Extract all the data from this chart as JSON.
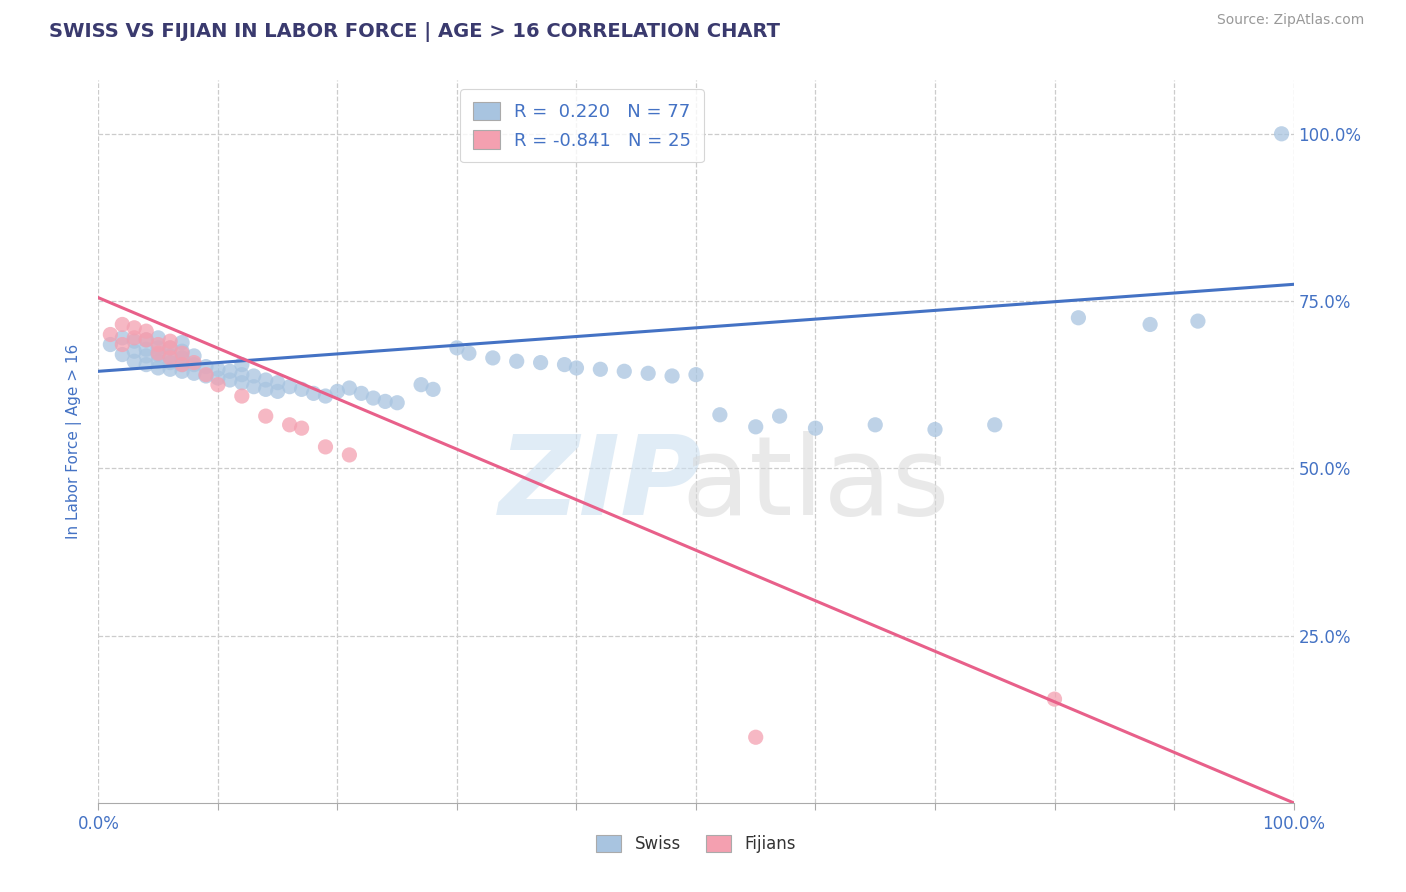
{
  "title": "SWISS VS FIJIAN IN LABOR FORCE | AGE > 16 CORRELATION CHART",
  "source_text": "Source: ZipAtlas.com",
  "ylabel": "In Labor Force | Age > 16",
  "xlim": [
    0.0,
    1.0
  ],
  "ylim": [
    0.0,
    1.08
  ],
  "yticks": [
    0.25,
    0.5,
    0.75,
    1.0
  ],
  "ytick_labels": [
    "25.0%",
    "50.0%",
    "75.0%",
    "100.0%"
  ],
  "xtick_positions": [
    0.0,
    0.1,
    0.2,
    0.3,
    0.4,
    0.5,
    0.6,
    0.7,
    0.8,
    0.9,
    1.0
  ],
  "xlim_labels_shown": [
    "0.0%",
    "100.0%"
  ],
  "background_color": "#ffffff",
  "grid_color": "#cccccc",
  "title_color": "#3a3a6e",
  "axis_color": "#4472c4",
  "swiss_color": "#a8c4e0",
  "fijian_color": "#f4a0b0",
  "swiss_line_color": "#4472c4",
  "fijian_line_color": "#e8608a",
  "legend_r1": "R =  0.220",
  "legend_n1": "N = 77",
  "legend_r2": "R = -0.841",
  "legend_n2": "N = 25",
  "swiss_line_y0": 0.645,
  "swiss_line_y1": 0.775,
  "fijian_line_y0": 0.755,
  "fijian_line_y1": 0.0,
  "swiss_x": [
    0.01,
    0.02,
    0.02,
    0.03,
    0.03,
    0.03,
    0.04,
    0.04,
    0.04,
    0.04,
    0.05,
    0.05,
    0.05,
    0.05,
    0.05,
    0.06,
    0.06,
    0.06,
    0.06,
    0.07,
    0.07,
    0.07,
    0.07,
    0.07,
    0.08,
    0.08,
    0.08,
    0.09,
    0.09,
    0.1,
    0.1,
    0.11,
    0.11,
    0.12,
    0.12,
    0.12,
    0.13,
    0.13,
    0.14,
    0.14,
    0.15,
    0.15,
    0.16,
    0.17,
    0.18,
    0.19,
    0.2,
    0.21,
    0.22,
    0.23,
    0.24,
    0.25,
    0.27,
    0.28,
    0.3,
    0.31,
    0.33,
    0.35,
    0.37,
    0.39,
    0.4,
    0.42,
    0.44,
    0.46,
    0.48,
    0.5,
    0.52,
    0.55,
    0.57,
    0.6,
    0.65,
    0.7,
    0.75,
    0.82,
    0.88,
    0.92,
    0.99
  ],
  "swiss_y": [
    0.685,
    0.67,
    0.695,
    0.66,
    0.675,
    0.69,
    0.655,
    0.668,
    0.678,
    0.692,
    0.65,
    0.66,
    0.67,
    0.68,
    0.695,
    0.648,
    0.658,
    0.668,
    0.68,
    0.645,
    0.655,
    0.665,
    0.675,
    0.688,
    0.642,
    0.655,
    0.668,
    0.638,
    0.652,
    0.635,
    0.648,
    0.632,
    0.645,
    0.628,
    0.64,
    0.655,
    0.622,
    0.638,
    0.618,
    0.632,
    0.615,
    0.628,
    0.622,
    0.618,
    0.612,
    0.608,
    0.615,
    0.62,
    0.612,
    0.605,
    0.6,
    0.598,
    0.625,
    0.618,
    0.68,
    0.672,
    0.665,
    0.66,
    0.658,
    0.655,
    0.65,
    0.648,
    0.645,
    0.642,
    0.638,
    0.64,
    0.58,
    0.562,
    0.578,
    0.56,
    0.565,
    0.558,
    0.565,
    0.725,
    0.715,
    0.72,
    1.0
  ],
  "fijian_x": [
    0.01,
    0.02,
    0.02,
    0.03,
    0.03,
    0.04,
    0.04,
    0.05,
    0.05,
    0.06,
    0.06,
    0.06,
    0.07,
    0.07,
    0.08,
    0.09,
    0.1,
    0.12,
    0.14,
    0.16,
    0.17,
    0.19,
    0.21,
    0.55,
    0.8
  ],
  "fijian_y": [
    0.7,
    0.715,
    0.685,
    0.71,
    0.695,
    0.692,
    0.705,
    0.685,
    0.672,
    0.68,
    0.665,
    0.69,
    0.672,
    0.655,
    0.658,
    0.64,
    0.625,
    0.608,
    0.578,
    0.565,
    0.56,
    0.532,
    0.52,
    0.098,
    0.155
  ]
}
